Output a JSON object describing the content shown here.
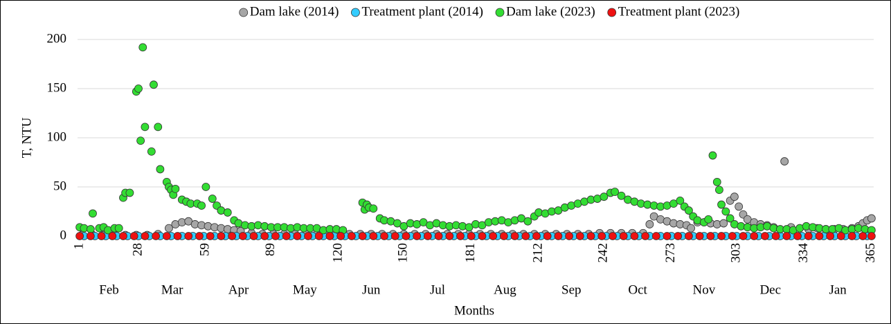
{
  "chart_data": {
    "type": "scatter",
    "x_label": "Months",
    "y_label": "T, NTU",
    "xlim": [
      0,
      366
    ],
    "xticks": [
      1,
      28,
      59,
      89,
      120,
      150,
      181,
      212,
      242,
      273,
      303,
      334,
      365
    ],
    "month_labels": [
      "Feb",
      "Mar",
      "Apr",
      "May",
      "Jun",
      "Jul",
      "Aug",
      "Sep",
      "Oct",
      "Nov",
      "Dec",
      "Jan"
    ],
    "ylim": [
      0,
      200
    ],
    "yticks": [
      0,
      50,
      100,
      150,
      200
    ],
    "grid": true,
    "legend": "top",
    "series": [
      {
        "name": "Dam lake (2014)",
        "color": "#a6a6a6",
        "x": [
          2,
          7,
          12,
          17,
          22,
          27,
          32,
          37,
          42,
          45,
          48,
          51,
          54,
          57,
          60,
          63,
          66,
          69,
          72,
          75,
          80,
          85,
          90,
          95,
          100,
          105,
          110,
          115,
          120,
          125,
          130,
          135,
          140,
          145,
          150,
          155,
          160,
          165,
          170,
          175,
          180,
          185,
          190,
          195,
          200,
          205,
          210,
          215,
          220,
          225,
          230,
          235,
          240,
          245,
          250,
          255,
          260,
          263,
          265,
          268,
          271,
          274,
          277,
          280,
          282,
          285,
          288,
          291,
          294,
          297,
          300,
          302,
          304,
          306,
          308,
          311,
          314,
          317,
          320,
          325,
          328,
          332,
          336,
          340,
          344,
          348,
          352,
          356,
          359,
          361,
          363,
          365
        ],
        "values": [
          1,
          1,
          1,
          1,
          1,
          1,
          1,
          2,
          8,
          12,
          14,
          15,
          12,
          11,
          10,
          9,
          8,
          7,
          6,
          5,
          3,
          2,
          2,
          2,
          2,
          2,
          2,
          2,
          2,
          2,
          2,
          2,
          2,
          2,
          2,
          2,
          2,
          2,
          2,
          2,
          2,
          2,
          2,
          2,
          2,
          2,
          2,
          2,
          2,
          2,
          2,
          2,
          3,
          3,
          3,
          3,
          3,
          12,
          20,
          17,
          15,
          13,
          12,
          11,
          8,
          14,
          14,
          13,
          12,
          13,
          36,
          40,
          30,
          22,
          17,
          14,
          12,
          11,
          9,
          76,
          9,
          8,
          7,
          8,
          7,
          7,
          7,
          8,
          10,
          13,
          16,
          18
        ]
      },
      {
        "name": "Treatment plant (2014)",
        "color": "#33ccff",
        "x": [
          3,
          8,
          13,
          18,
          23,
          28,
          33,
          38,
          43,
          48,
          53,
          58,
          63,
          68,
          73,
          78,
          83,
          88,
          93,
          98,
          103,
          108,
          113,
          118,
          123,
          128,
          133,
          138,
          143,
          148,
          153,
          158,
          163,
          168,
          173,
          178,
          183,
          188,
          193,
          198,
          203,
          208,
          213,
          218,
          223,
          228,
          233,
          238,
          243,
          248,
          253,
          258,
          263,
          268,
          273,
          278,
          283,
          288,
          293,
          298,
          303,
          308,
          313,
          318,
          323,
          328,
          333,
          338,
          343,
          348,
          353,
          358,
          363
        ],
        "values": [
          0,
          0,
          0,
          0,
          0,
          0,
          0,
          0,
          0,
          0,
          0,
          0,
          0,
          0,
          0,
          0,
          0,
          0,
          0,
          0,
          0,
          0,
          0,
          0,
          0,
          0,
          0,
          0,
          0,
          0,
          0,
          0,
          0,
          0,
          0,
          0,
          0,
          0,
          0,
          0,
          0,
          0,
          0,
          0,
          0,
          0,
          0,
          0,
          0,
          0,
          0,
          0,
          0,
          0,
          0,
          0,
          0,
          0,
          0,
          0,
          0,
          0,
          0,
          0,
          0,
          0,
          0,
          0,
          0,
          0,
          0,
          0,
          0
        ]
      },
      {
        "name": "Dam lake (2023)",
        "color": "#33dd33",
        "x": [
          1,
          3,
          6,
          7,
          10,
          12,
          14,
          17,
          19,
          21,
          22,
          24,
          27,
          28,
          29,
          30,
          31,
          34,
          35,
          37,
          38,
          41,
          42,
          43,
          44,
          45,
          48,
          50,
          52,
          55,
          57,
          59,
          62,
          64,
          66,
          69,
          72,
          74,
          77,
          80,
          83,
          86,
          89,
          92,
          95,
          98,
          101,
          104,
          107,
          110,
          113,
          116,
          119,
          122,
          131,
          132,
          133,
          134,
          136,
          139,
          141,
          144,
          147,
          150,
          153,
          156,
          159,
          162,
          165,
          168,
          171,
          174,
          177,
          180,
          183,
          186,
          189,
          192,
          195,
          198,
          201,
          204,
          207,
          210,
          212,
          215,
          218,
          221,
          224,
          227,
          230,
          233,
          236,
          239,
          242,
          245,
          247,
          250,
          253,
          256,
          259,
          262,
          265,
          268,
          271,
          274,
          277,
          279,
          281,
          283,
          285,
          288,
          290,
          292,
          294,
          295,
          296,
          298,
          300,
          302,
          305,
          308,
          311,
          314,
          317,
          320,
          323,
          326,
          329,
          332,
          335,
          338,
          341,
          344,
          347,
          350,
          353,
          356,
          359,
          362,
          365
        ],
        "values": [
          9,
          8,
          7,
          23,
          8,
          9,
          6,
          8,
          8,
          39,
          44,
          44,
          147,
          150,
          97,
          192,
          111,
          86,
          154,
          111,
          68,
          55,
          50,
          47,
          42,
          48,
          37,
          35,
          33,
          33,
          31,
          50,
          38,
          31,
          26,
          24,
          16,
          13,
          11,
          10,
          11,
          10,
          9,
          9,
          9,
          8,
          9,
          8,
          8,
          8,
          6,
          7,
          7,
          6,
          34,
          27,
          32,
          29,
          28,
          18,
          16,
          15,
          13,
          10,
          13,
          12,
          14,
          11,
          13,
          11,
          10,
          11,
          10,
          9,
          12,
          11,
          14,
          15,
          16,
          14,
          16,
          18,
          15,
          20,
          24,
          23,
          25,
          26,
          29,
          31,
          33,
          35,
          37,
          38,
          40,
          44,
          45,
          41,
          37,
          35,
          33,
          32,
          31,
          30,
          31,
          33,
          36,
          30,
          26,
          20,
          16,
          14,
          17,
          82,
          55,
          47,
          32,
          25,
          18,
          12,
          10,
          9,
          8,
          9,
          10,
          8,
          7,
          7,
          6,
          8,
          10,
          9,
          8,
          7,
          7,
          8,
          6,
          7,
          8,
          7,
          6
        ]
      },
      {
        "name": "Treatment plant (2023)",
        "color": "#ee1111",
        "x": [
          1,
          6,
          11,
          16,
          21,
          26,
          31,
          36,
          41,
          46,
          51,
          56,
          61,
          66,
          71,
          76,
          81,
          86,
          91,
          96,
          101,
          106,
          111,
          116,
          121,
          126,
          131,
          136,
          141,
          146,
          151,
          156,
          161,
          166,
          171,
          176,
          181,
          186,
          191,
          196,
          201,
          206,
          211,
          216,
          221,
          226,
          231,
          236,
          241,
          246,
          251,
          256,
          261,
          266,
          271,
          276,
          281,
          286,
          291,
          296,
          301,
          306,
          311,
          316,
          321,
          326,
          331,
          336,
          341,
          346,
          351,
          356,
          361,
          365
        ],
        "values": [
          0,
          0,
          0,
          0,
          0,
          0,
          0,
          0,
          0,
          0,
          0,
          0,
          0,
          0,
          0,
          0,
          0,
          0,
          0,
          0,
          0,
          0,
          0,
          0,
          0,
          0,
          0,
          0,
          0,
          0,
          0,
          0,
          0,
          0,
          0,
          0,
          0,
          0,
          0,
          0,
          0,
          0,
          0,
          0,
          0,
          0,
          0,
          0,
          0,
          0,
          0,
          0,
          0,
          0,
          0,
          0,
          0,
          0,
          0,
          0,
          0,
          0,
          0,
          0,
          0,
          0,
          0,
          0,
          0,
          0,
          0,
          0,
          0,
          0
        ]
      }
    ]
  }
}
